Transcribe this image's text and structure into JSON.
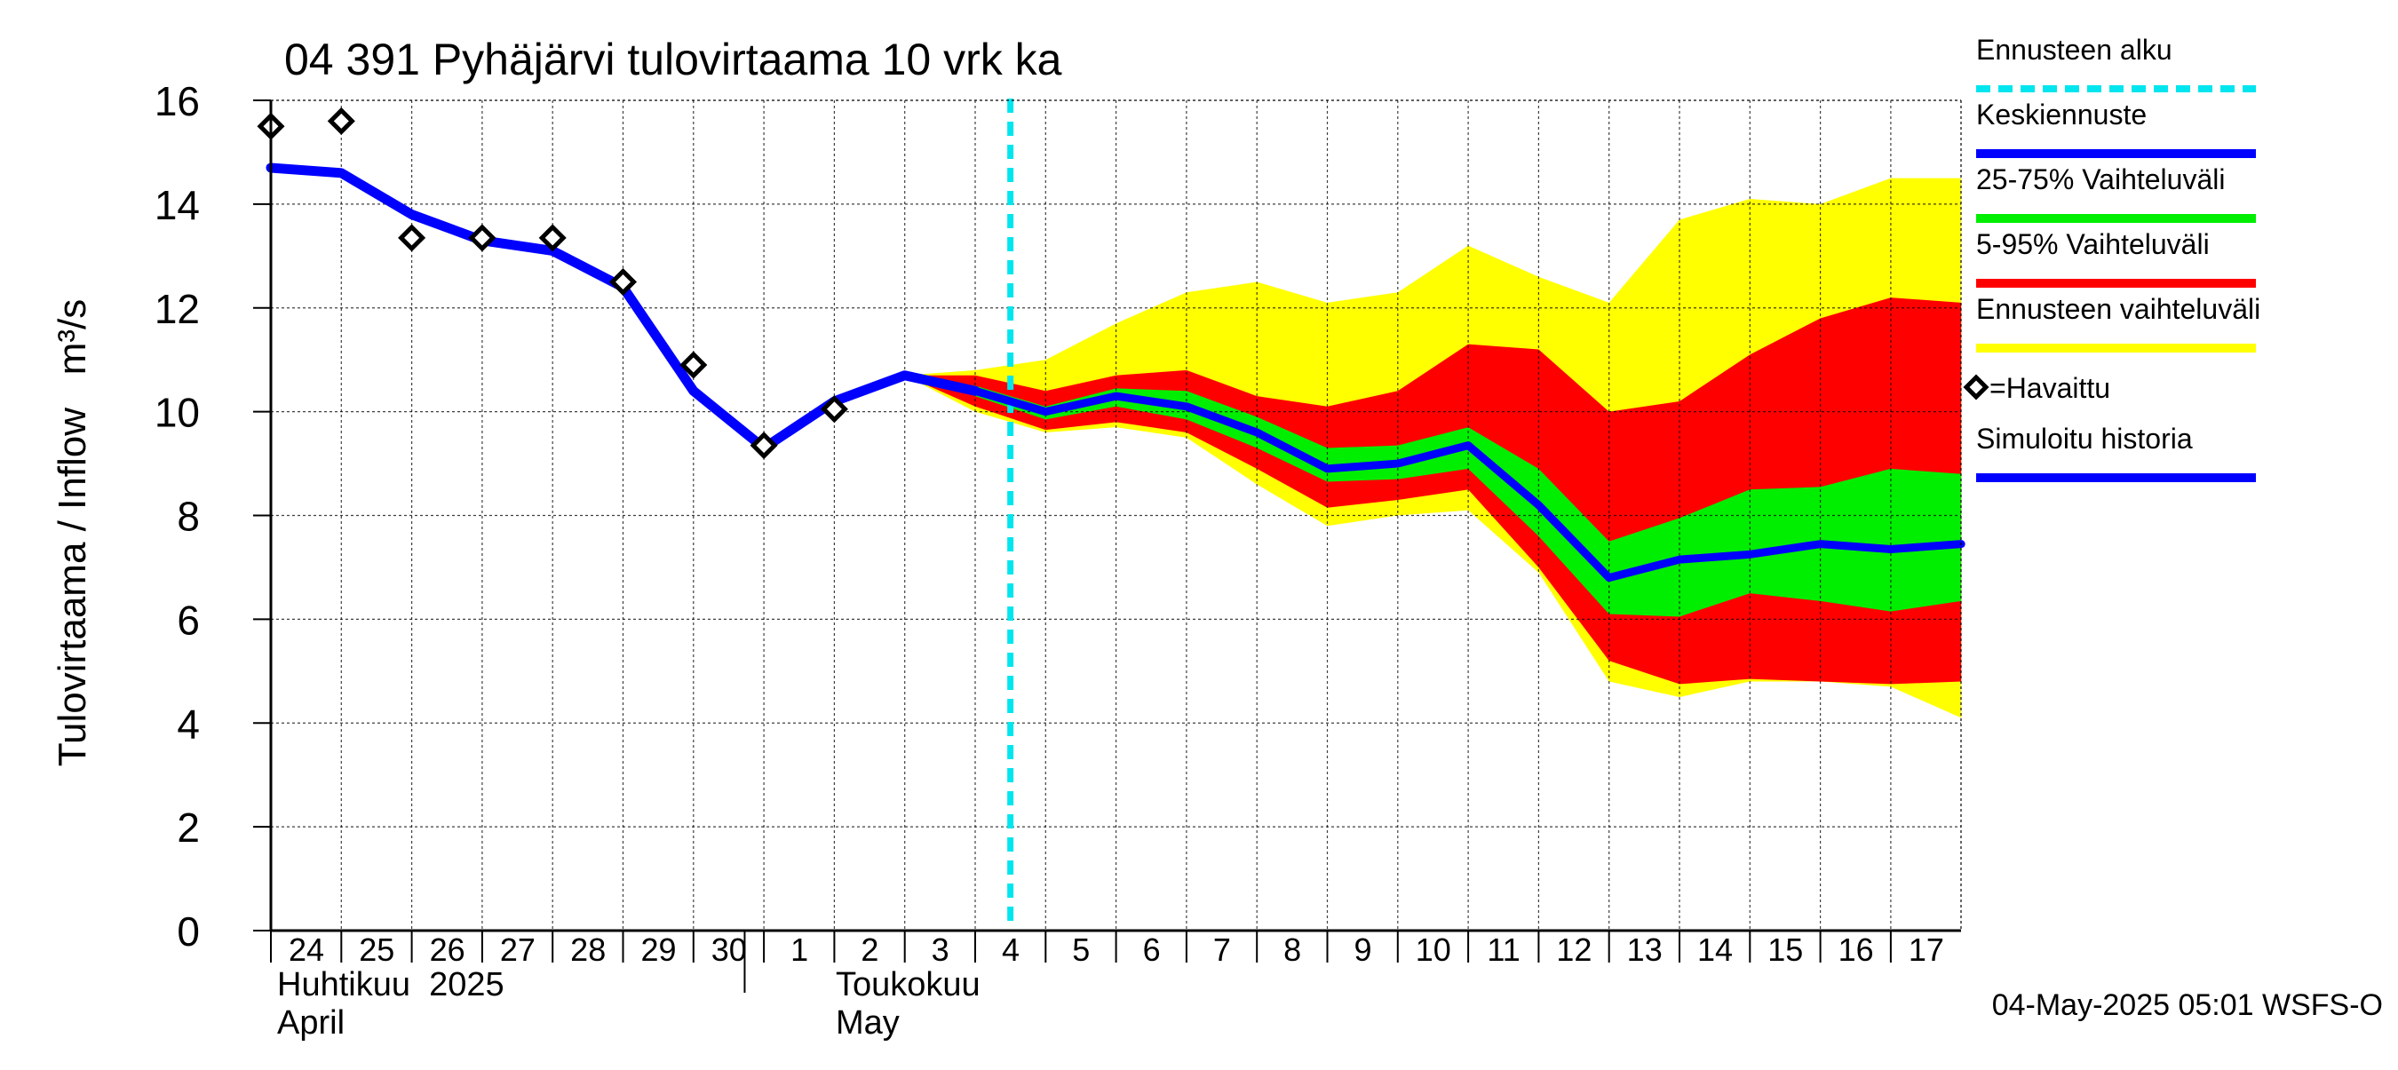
{
  "chart_data": {
    "type": "area",
    "title": "04 391 Pyhäjärvi tulovirtaama 10 vrk ka",
    "ylabel": "Tulovirtaama / Inflow   m³/s",
    "ylim": [
      0,
      16
    ],
    "yticks": [
      "0",
      "2",
      "4",
      "6",
      "8",
      "10",
      "12",
      "14",
      "16"
    ],
    "grid": true,
    "x_day_labels": [
      "24",
      "25",
      "26",
      "27",
      "28",
      "29",
      "30",
      "1",
      "2",
      "3",
      "4",
      "5",
      "6",
      "7",
      "8",
      "9",
      "10",
      "11",
      "12",
      "13",
      "14",
      "15",
      "16",
      "17"
    ],
    "month_labels": {
      "april_fi": "Huhtikuu  2025",
      "april_en": "April",
      "may_fi": "Toukokuu",
      "may_en": "May"
    },
    "forecast_start_day_index": 10,
    "legend_position": "right",
    "legend": [
      {
        "label": "Ennusteen alku",
        "color": "#00e5ee",
        "style": "dashed"
      },
      {
        "label": "Keskiennuste",
        "color": "#0000ff",
        "style": "line"
      },
      {
        "label": "25-75% Vaihteluväli",
        "color": "#00ee00",
        "style": "line"
      },
      {
        "label": "5-95% Vaihteluväli",
        "color": "#ff0000",
        "style": "line"
      },
      {
        "label": "Ennusteen vaihteluväli",
        "color": "#ffff00",
        "style": "line"
      },
      {
        "label": "=Havaittu",
        "color": "#000000",
        "style": "diamond"
      },
      {
        "label": "Simuloitu historia",
        "color": "#0000ff",
        "style": "line"
      }
    ],
    "series": [
      {
        "name": "Simuloitu historia",
        "color": "#0000ff",
        "x": [
          0,
          1,
          2,
          3,
          4,
          5,
          6,
          7,
          8,
          9,
          10
        ],
        "values": [
          14.7,
          14.6,
          13.8,
          13.3,
          13.1,
          12.4,
          10.4,
          9.3,
          10.2,
          10.7,
          10.4
        ]
      },
      {
        "name": "Keskiennuste",
        "color": "#0000ff",
        "x": [
          9,
          10,
          11,
          12,
          13,
          14,
          15,
          16,
          17,
          18,
          19,
          20,
          21,
          22,
          23,
          24
        ],
        "values": [
          10.7,
          10.4,
          10.0,
          10.3,
          10.1,
          9.6,
          8.9,
          9.0,
          9.35,
          8.2,
          6.8,
          7.15,
          7.25,
          7.45,
          7.35,
          7.45
        ]
      },
      {
        "name": "Havaittu",
        "color": "#000000",
        "x": [
          0,
          1,
          2,
          3,
          4,
          5,
          6,
          7,
          8
        ],
        "values": [
          15.5,
          15.6,
          13.35,
          13.35,
          13.35,
          12.5,
          10.9,
          9.35,
          10.05
        ]
      }
    ],
    "bands": [
      {
        "name": "Ennusteen vaihteluväli",
        "color": "#ffff00",
        "x": [
          9,
          10,
          11,
          12,
          13,
          14,
          15,
          16,
          17,
          18,
          19,
          20,
          21,
          22,
          23,
          24
        ],
        "upper": [
          10.7,
          10.8,
          11.0,
          11.7,
          12.3,
          12.5,
          12.1,
          12.3,
          13.2,
          12.6,
          12.1,
          13.7,
          14.1,
          14.0,
          14.5,
          14.5
        ],
        "lower": [
          10.7,
          10.0,
          9.6,
          9.7,
          9.5,
          8.6,
          7.8,
          8.0,
          8.1,
          6.9,
          4.8,
          4.5,
          4.8,
          4.8,
          4.7,
          4.1
        ]
      },
      {
        "name": "5-95% Vaihteluväli",
        "color": "#ff0000",
        "x": [
          9,
          10,
          11,
          12,
          13,
          14,
          15,
          16,
          17,
          18,
          19,
          20,
          21,
          22,
          23,
          24
        ],
        "upper": [
          10.7,
          10.7,
          10.4,
          10.7,
          10.8,
          10.3,
          10.1,
          10.4,
          11.3,
          11.2,
          10.0,
          10.2,
          11.1,
          11.8,
          12.2,
          12.1
        ],
        "lower": [
          10.7,
          10.1,
          9.65,
          9.8,
          9.6,
          8.9,
          8.15,
          8.3,
          8.5,
          7.0,
          5.2,
          4.75,
          4.85,
          4.8,
          4.75,
          4.8
        ]
      },
      {
        "name": "25-75% Vaihteluväli",
        "color": "#00ee00",
        "x": [
          9,
          10,
          11,
          12,
          13,
          14,
          15,
          16,
          17,
          18,
          19,
          20,
          21,
          22,
          23,
          24
        ],
        "upper": [
          10.7,
          10.5,
          10.1,
          10.45,
          10.4,
          9.9,
          9.3,
          9.35,
          9.7,
          8.9,
          7.5,
          7.95,
          8.5,
          8.55,
          8.9,
          8.8
        ],
        "lower": [
          10.7,
          10.3,
          9.85,
          10.1,
          9.85,
          9.3,
          8.65,
          8.7,
          8.9,
          7.6,
          6.1,
          6.05,
          6.5,
          6.35,
          6.15,
          6.35
        ]
      }
    ],
    "footer": "04-May-2025 05:01 WSFS-O"
  }
}
